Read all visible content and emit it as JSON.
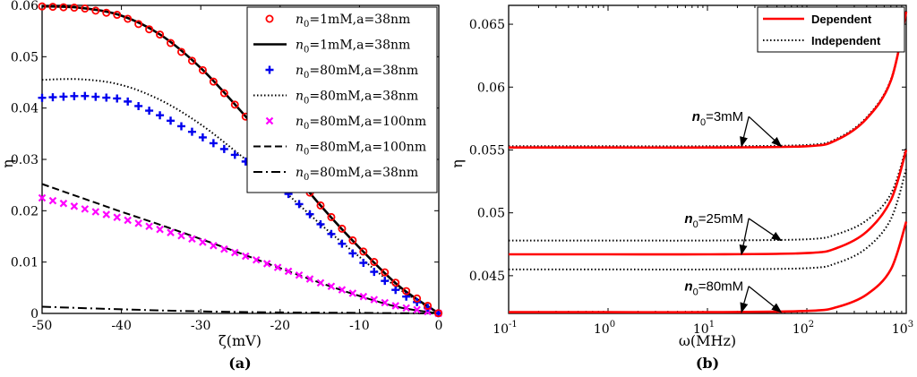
{
  "chart_data": [
    {
      "type": "line",
      "panel_label": "(a)",
      "xlabel": "ζ(mV)",
      "ylabel": "η",
      "xlim": [
        -50,
        0
      ],
      "ylim": [
        0,
        0.06
      ],
      "xticks": [
        -50,
        -40,
        -30,
        -20,
        -10,
        0
      ],
      "xtick_labels": [
        "-50",
        "-40",
        "-30",
        "-20",
        "-10",
        "0"
      ],
      "yticks": [
        0,
        0.01,
        0.02,
        0.03,
        0.04,
        0.05,
        0.06
      ],
      "ytick_labels": [
        "0",
        "0.01",
        "0.02",
        "0.03",
        "0.04",
        "0.05",
        "0.06"
      ],
      "legend_position": "top-right",
      "series": [
        {
          "key": "s1",
          "name": "n0=1mM,a=38nm",
          "legend_sub": "0",
          "legend_rest": "=1mM,a=38nm",
          "style": "circle-markers",
          "color": "#ff0000",
          "x": [
            -50,
            -45,
            -40,
            -35,
            -30,
            -25,
            -20,
            -15,
            -10,
            -5,
            0
          ],
          "y": [
            0.0598,
            0.0595,
            0.058,
            0.0542,
            0.0478,
            0.0395,
            0.0305,
            0.0212,
            0.0128,
            0.0053,
            0
          ]
        },
        {
          "key": "s2",
          "name": "n0=1mM,a=38nm",
          "legend_sub": "0",
          "legend_rest": "=1mM,a=38nm",
          "style": "solid",
          "color": "#000000",
          "x": [
            -50,
            -45,
            -40,
            -35,
            -30,
            -25,
            -20,
            -15,
            -10,
            -5,
            0
          ],
          "y": [
            0.0598,
            0.0595,
            0.058,
            0.0542,
            0.0478,
            0.0395,
            0.0305,
            0.0212,
            0.0128,
            0.0053,
            0
          ]
        },
        {
          "key": "s3",
          "name": "n0=80mM,a=38nm",
          "legend_sub": "0",
          "legend_rest": "=80mM,a=38nm",
          "style": "plus-markers",
          "color": "#0000ee",
          "x": [
            -50,
            -45,
            -40,
            -35,
            -30,
            -25,
            -20,
            -15,
            -10,
            -5,
            0
          ],
          "y": [
            0.042,
            0.0424,
            0.0418,
            0.0385,
            0.0345,
            0.0303,
            0.0248,
            0.0175,
            0.0105,
            0.004,
            0
          ]
        },
        {
          "key": "s4",
          "name": "n0=80mM,a=38nm",
          "legend_sub": "0",
          "legend_rest": "=80mM,a=38nm",
          "style": "dotted",
          "color": "#000000",
          "x": [
            -50,
            -45,
            -40,
            -35,
            -30,
            -25,
            -20,
            -15,
            -10,
            -5,
            0
          ],
          "y": [
            0.0455,
            0.0456,
            0.0445,
            0.0415,
            0.0368,
            0.0308,
            0.0245,
            0.0175,
            0.011,
            0.0048,
            0
          ]
        },
        {
          "key": "s5",
          "name": "n0=80mM,a=100nm",
          "legend_sub": "0",
          "legend_rest": "=80mM,a=100nm",
          "style": "x-markers",
          "color": "#ff00ff",
          "x": [
            -50,
            -45,
            -40,
            -35,
            -30,
            -25,
            -20,
            -15,
            -10,
            -5,
            0
          ],
          "y": [
            0.0225,
            0.0205,
            0.0185,
            0.0163,
            0.014,
            0.0115,
            0.0088,
            0.006,
            0.0035,
            0.0013,
            0
          ]
        },
        {
          "key": "s6",
          "name": "n0=80mM,a=100nm",
          "legend_sub": "0",
          "legend_rest": "=80mM,a=100nm",
          "style": "dashed",
          "color": "#000000",
          "x": [
            -50,
            -45,
            -40,
            -35,
            -30,
            -25,
            -20,
            -15,
            -10,
            -5,
            0
          ],
          "y": [
            0.0252,
            0.0225,
            0.0198,
            0.0172,
            0.0145,
            0.0117,
            0.0088,
            0.006,
            0.0034,
            0.0012,
            0
          ]
        },
        {
          "key": "s7",
          "name": "n0=80mM,a=38nm",
          "legend_sub": "0",
          "legend_rest": "=80mM,a=38nm",
          "style": "dash-dot",
          "color": "#000000",
          "x": [
            -50,
            -40,
            -30,
            -20,
            -10,
            0
          ],
          "y": [
            0.0013,
            0.0008,
            0.0004,
            0.0002,
            0.0001,
            0
          ]
        }
      ]
    },
    {
      "type": "line",
      "panel_label": "(b)",
      "xlabel": "ω(MHz)",
      "ylabel": "η",
      "xscale": "log",
      "xlim": [
        0.1,
        1000
      ],
      "ylim": [
        0.042,
        0.0665
      ],
      "xticks": [
        0.1,
        1,
        10,
        100,
        1000
      ],
      "xtick_exponents": [
        "-1",
        "0",
        "1",
        "2",
        "3"
      ],
      "yticks": [
        0.045,
        0.05,
        0.055,
        0.06,
        0.065
      ],
      "ytick_labels": [
        "0.045",
        "0.05",
        "0.055",
        "0.06",
        "0.065"
      ],
      "legend_position": "top-right",
      "legend": [
        {
          "label": "Dependent",
          "style": "solid",
          "color": "#ff0000"
        },
        {
          "label": "Independent",
          "style": "dotted",
          "color": "#000000"
        }
      ],
      "series": [
        {
          "name": "Dependent, n0=3mM",
          "style": "solid",
          "color": "#ff0000",
          "x": [
            0.1,
            1,
            10,
            100,
            200,
            400,
            700,
            1000
          ],
          "y": [
            0.0552,
            0.0552,
            0.0552,
            0.0553,
            0.0558,
            0.0575,
            0.0605,
            0.066
          ]
        },
        {
          "name": "Independent, n0=3mM",
          "style": "dotted",
          "color": "#000000",
          "x": [
            0.1,
            1,
            10,
            100,
            200,
            400,
            700,
            1000
          ],
          "y": [
            0.0553,
            0.0553,
            0.0553,
            0.0554,
            0.0559,
            0.0576,
            0.0606,
            0.0661
          ]
        },
        {
          "name": "Dependent, n0=25mM",
          "style": "solid",
          "color": "#ff0000",
          "x": [
            0.1,
            1,
            10,
            100,
            200,
            400,
            700,
            1000
          ],
          "y": [
            0.0467,
            0.0467,
            0.0467,
            0.0468,
            0.0472,
            0.0485,
            0.051,
            0.055
          ]
        },
        {
          "name": "Independent, n0=25mM (upper)",
          "style": "dotted",
          "color": "#000000",
          "x": [
            0.1,
            1,
            10,
            100,
            200,
            400,
            700,
            1000
          ],
          "y": [
            0.0478,
            0.0478,
            0.0478,
            0.0479,
            0.0483,
            0.0494,
            0.0515,
            0.0552
          ]
        },
        {
          "name": "Independent, n0=25mM (lower)",
          "style": "dotted",
          "color": "#000000",
          "x": [
            0.1,
            1,
            10,
            100,
            200,
            400,
            700,
            1000
          ],
          "y": [
            0.0455,
            0.0455,
            0.0455,
            0.0456,
            0.046,
            0.0472,
            0.0495,
            0.0535
          ]
        },
        {
          "name": "Dependent, n0=80mM",
          "style": "solid",
          "color": "#ff0000",
          "x": [
            0.1,
            1,
            10,
            100,
            200,
            400,
            700,
            1000
          ],
          "y": [
            0.0421,
            0.0421,
            0.0421,
            0.0422,
            0.0425,
            0.0435,
            0.0455,
            0.0493
          ]
        }
      ],
      "annotations": [
        {
          "text_main": "n",
          "text_sub": "0",
          "text_rest": "=3mM",
          "arrow_to": [
            [
              22,
              0.0553
            ],
            [
              55,
              0.0553
            ]
          ],
          "text_at": [
            25,
            0.0573
          ]
        },
        {
          "text_main": "n",
          "text_sub": "0",
          "text_rest": "=25mM",
          "arrow_to": [
            [
              22,
              0.0467
            ],
            [
              55,
              0.0478
            ]
          ],
          "text_at": [
            25,
            0.0492
          ]
        },
        {
          "text_main": "n",
          "text_sub": "0",
          "text_rest": "=80mM",
          "arrow_to": [
            [
              22,
              0.0421
            ],
            [
              55,
              0.0421
            ]
          ],
          "text_at": [
            25,
            0.0438
          ]
        }
      ]
    }
  ]
}
